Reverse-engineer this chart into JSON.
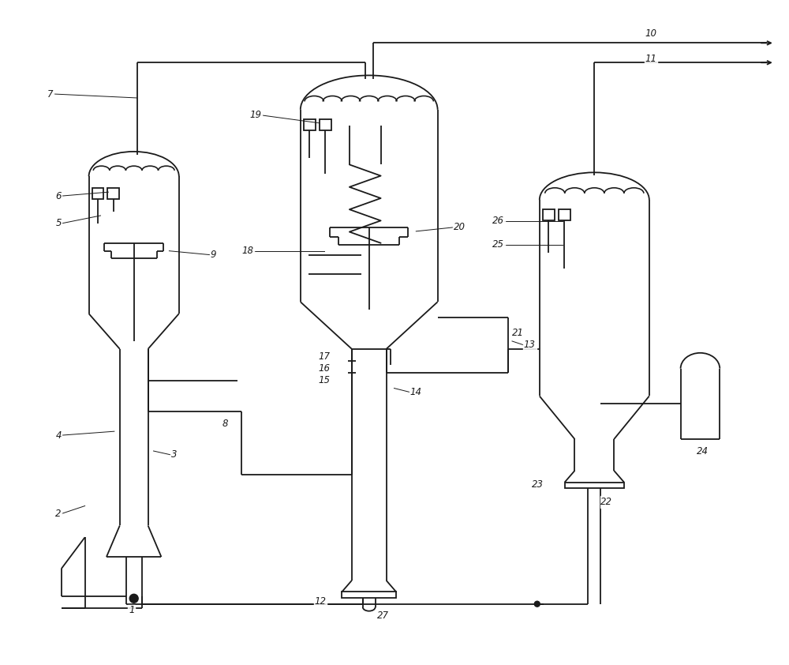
{
  "background": "#ffffff",
  "line_color": "#1a1a1a",
  "label_color": "#1a1a1a",
  "fig_width": 10.0,
  "fig_height": 8.42,
  "dpi": 100,
  "lw": 1.3
}
